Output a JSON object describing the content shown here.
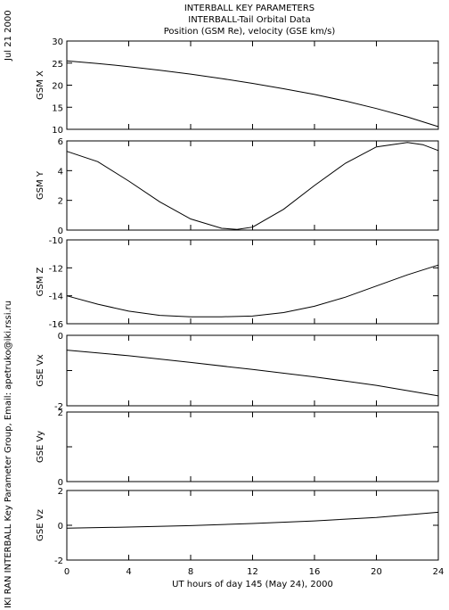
{
  "header": {
    "line1": "INTERBALL KEY PARAMETERS",
    "line2": "INTERBALL-Tail Orbital Data",
    "line3": "Position (GSM Re), velocity (GSE km/s)"
  },
  "side": {
    "date": "Jul 21 2000",
    "credit": "IKI RAN INTERBALL Key Parameter Group, Email: apetruko@iki.rssi.ru"
  },
  "chart_data": [
    {
      "type": "line",
      "ylabel": "GSM X",
      "ylim": [
        10,
        30
      ],
      "yticks": [
        "30",
        "25",
        "20",
        "15",
        "10"
      ],
      "x": [
        0,
        2,
        4,
        6,
        8,
        10,
        12,
        14,
        16,
        18,
        20,
        22,
        24
      ],
      "values": [
        25.5,
        24.9,
        24.2,
        23.4,
        22.5,
        21.5,
        20.4,
        19.2,
        17.9,
        16.4,
        14.7,
        12.8,
        10.6
      ]
    },
    {
      "type": "line",
      "ylabel": "GSM Y",
      "ylim": [
        0,
        6
      ],
      "yticks": [
        "6",
        "4",
        "2",
        "0"
      ],
      "x": [
        0,
        2,
        4,
        6,
        8,
        10,
        11,
        12,
        14,
        16,
        18,
        20,
        22,
        23,
        24
      ],
      "values": [
        5.3,
        4.6,
        3.3,
        1.9,
        0.75,
        0.12,
        0.05,
        0.2,
        1.4,
        3.0,
        4.5,
        5.6,
        5.9,
        5.75,
        5.35
      ]
    },
    {
      "type": "line",
      "ylabel": "GSM Z",
      "ylim": [
        -16,
        -10
      ],
      "yticks": [
        "-10",
        "-12",
        "-14",
        "-16"
      ],
      "x": [
        0,
        2,
        4,
        6,
        8,
        10,
        12,
        14,
        16,
        18,
        20,
        22,
        24
      ],
      "values": [
        -14.0,
        -14.6,
        -15.1,
        -15.4,
        -15.5,
        -15.5,
        -15.45,
        -15.2,
        -14.75,
        -14.1,
        -13.3,
        -12.5,
        -11.8
      ]
    },
    {
      "type": "line",
      "ylabel": "GSE Vx",
      "ylim": [
        -2,
        0
      ],
      "yticks": [
        "0",
        "",
        "-2"
      ],
      "x": [
        0,
        4,
        8,
        12,
        16,
        20,
        24
      ],
      "values": [
        -0.42,
        -0.58,
        -0.77,
        -0.97,
        -1.18,
        -1.42,
        -1.72
      ]
    },
    {
      "type": "line",
      "ylabel": "GSE Vy",
      "ylim": [
        0,
        2
      ],
      "yticks": [
        "2",
        "",
        "0"
      ],
      "x": [
        0,
        24
      ],
      "values": [
        0,
        0
      ]
    },
    {
      "type": "line",
      "ylabel": "GSE Vz",
      "ylim": [
        -2,
        2
      ],
      "yticks": [
        "2",
        "0",
        "-2"
      ],
      "x": [
        0,
        4,
        8,
        12,
        16,
        20,
        24
      ],
      "values": [
        -0.17,
        -0.1,
        -0.02,
        0.1,
        0.25,
        0.45,
        0.75
      ]
    }
  ],
  "xaxis": {
    "ticks": [
      "0",
      "4",
      "8",
      "12",
      "16",
      "20",
      "24"
    ],
    "label": "UT hours of day 145 (May 24), 2000",
    "xlim": [
      0,
      24
    ]
  }
}
